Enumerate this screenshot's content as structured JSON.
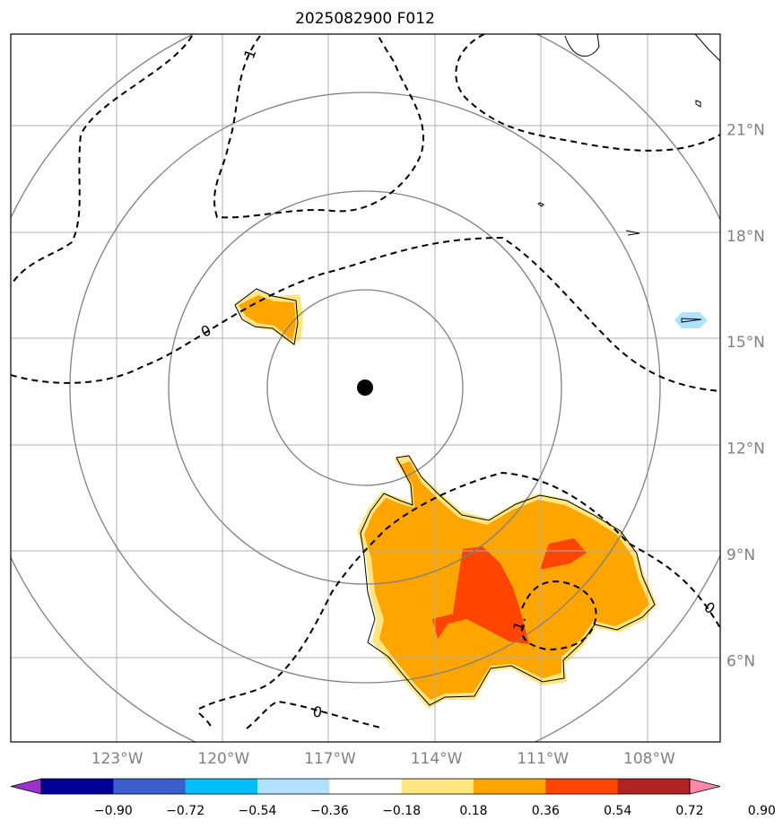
{
  "title": "2025082900 F012",
  "chart_data": {
    "type": "heatmap",
    "title": "2025082900 F012",
    "x_ticks": [
      "123°W",
      "120°W",
      "117°W",
      "114°W",
      "111°W",
      "108°W"
    ],
    "x_tick_values": [
      -123,
      -120,
      -117,
      -114,
      -111,
      -108
    ],
    "y_ticks": [
      "21°N",
      "18°N",
      "15°N",
      "12°N",
      "9°N",
      "6°N"
    ],
    "y_tick_values": [
      21,
      18,
      15,
      12,
      9,
      6
    ],
    "xlim": [
      -126,
      -106
    ],
    "ylim": [
      3.7,
      23.7
    ],
    "grid": true,
    "center": {
      "lon": -116,
      "lat": 13.6
    },
    "range_rings_deg": [
      2.75,
      5.5,
      8.25,
      11.0
    ],
    "colorbar": {
      "levels": [
        -0.9,
        -0.72,
        -0.54,
        -0.36,
        -0.18,
        0.18,
        0.36,
        0.54,
        0.72,
        0.9
      ],
      "labels": [
        "−0.90",
        "−0.72",
        "−0.54",
        "−0.36",
        "−0.18",
        "0.18",
        "0.36",
        "0.54",
        "0.72",
        "0.90"
      ],
      "colors": [
        "#9933cc",
        "#000099",
        "#3a5fcd",
        "#00bfff",
        "#b0e2ff",
        "#ffffff",
        "#ffe680",
        "#ffa500",
        "#ff4500",
        "#b22222",
        "#ff88aa"
      ],
      "extend": "both"
    },
    "contour_labels": [
      "1",
      "0",
      "0",
      "0",
      "1"
    ],
    "filled_regions": [
      {
        "level": "0.18–0.36",
        "color": "#ffe680",
        "area": "north-west cluster near 15.5°N 119°W"
      },
      {
        "level": "0.36–0.54",
        "color": "#ffa500",
        "area": "north-west cluster near 15.5°N 119°W"
      },
      {
        "level": "0.18–0.36",
        "color": "#ffe680",
        "area": "southern cluster 5–11°N, 116–108°W"
      },
      {
        "level": "0.36–0.54",
        "color": "#ffa500",
        "area": "southern cluster 5–11°N, 116–108°W"
      },
      {
        "level": "0.54–0.72",
        "color": "#ff4500",
        "area": "core near 8°N 112.5°W"
      },
      {
        "level": "0.54–0.72",
        "color": "#ff4500",
        "area": "small core near 9°N 110.5°W"
      },
      {
        "level": "−0.36–−0.18",
        "color": "#b0e2ff",
        "area": "small patch near 15.5°N 107°W"
      }
    ]
  },
  "colors": {
    "grid": "#b0b0b0",
    "rings": "#808080",
    "tick_text": "#808080",
    "contour": "#000000"
  }
}
